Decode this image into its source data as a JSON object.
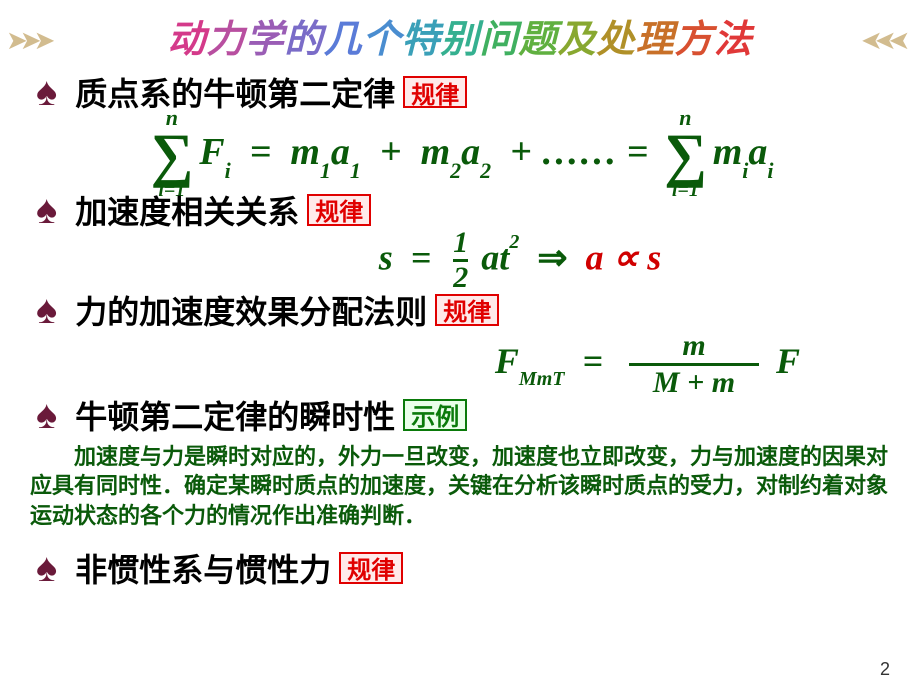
{
  "title_chars": [
    "动",
    "力",
    "学",
    "的",
    "几",
    "个",
    "特",
    "别",
    "问",
    "题",
    "及",
    "处",
    "理",
    "方",
    "法"
  ],
  "sections": {
    "s1": {
      "heading": "质点系的牛顿第二定律",
      "tag": "规律",
      "tag_kind": "red"
    },
    "s2": {
      "heading": "加速度相关关系",
      "tag": "规律",
      "tag_kind": "red"
    },
    "s3": {
      "heading": "力的加速度效果分配法则",
      "tag": "规律",
      "tag_kind": "red"
    },
    "s4": {
      "heading": "牛顿第二定律的瞬时性",
      "tag": "示例",
      "tag_kind": "green"
    },
    "s5": {
      "heading": "非惯性系与惯性力",
      "tag": "规律",
      "tag_kind": "red"
    }
  },
  "formula1": {
    "sum_upper": "n",
    "sum_lower": "i=1",
    "lhs_var": "F",
    "lhs_sub": "i",
    "eq": "=",
    "t1m": "m",
    "t1s": "1",
    "t1a": "a",
    "t1as": "1",
    "plus": "+",
    "t2m": "m",
    "t2s": "2",
    "t2a": "a",
    "t2as": "2",
    "dots": "+ …… =",
    "rhm": "m",
    "rhs_sub_i": "i",
    "rha": "a"
  },
  "formula2": {
    "s": "s",
    "eq": "=",
    "num": "1",
    "den": "2",
    "a": "a",
    "t": "t",
    "exp": "2",
    "arrow": "⇒",
    "prop": "a ∝ s"
  },
  "formula3": {
    "F": "F",
    "sub": "MmT",
    "eq": "=",
    "num": "m",
    "den": "M + m",
    "rhs": "F"
  },
  "paragraph": "加速度与力是瞬时对应的，外力一旦改变，加速度也立即改变，力与加速度的因果对应具有同时性．确定某瞬时质点的加速度，关键在分析该瞬时质点的受力，对制约着对象运动状态的各个力的情况作出准确判断．",
  "page_number": "2",
  "colors": {
    "dark_green": "#0a5a0a",
    "dark_red": "#d00000",
    "spade": "#6a1a3a"
  }
}
